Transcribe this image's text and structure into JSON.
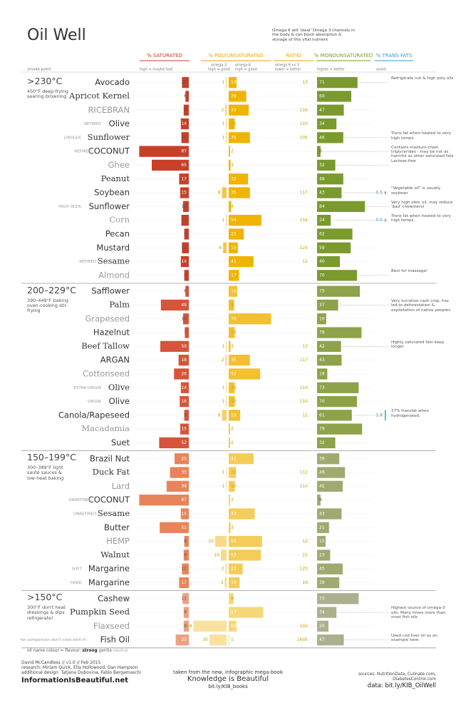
{
  "header": {
    "title": "Oil Well",
    "note": "Omega 6 will 'steal' Omega 3 channels in the body & can block absorption & storage of this vital nutrient",
    "smoke_point": "smoke point"
  },
  "columns": {
    "saturated": {
      "label": "% SATURATED",
      "sub": "high = maybe bad",
      "color": "#c8402a"
    },
    "poly": {
      "label": "% POLYUNSATURATED",
      "sub3": "omega-3",
      "sub3b": "high = good",
      "sub6": "omega-6",
      "sub6b": "high = good",
      "color": "#e8a800"
    },
    "ratio": {
      "label": "RATIO",
      "sub": "omega 6 vs 3",
      "subb": "lower = better",
      "color": "#e8a800"
    },
    "mono": {
      "label": "% MONOUNSATURATED",
      "sub": "higher = better",
      "color": "#7a9a2e"
    },
    "trans": {
      "label": "% TRANS FATS",
      "sub": "avoid",
      "color": "#3a9ad0"
    }
  },
  "groups": [
    {
      "temp": ">230°C",
      "desc": "450°F deep-frying searing browning",
      "colors": {
        "sat": "#c8402a",
        "o3": "#f3c64a",
        "o6": "#f0b400",
        "mono": "#7a9a2e"
      },
      "rows": [
        {
          "name": "Avocado",
          "saturated": 12,
          "omega3": 1,
          "omega6": 13,
          "ratio": "13",
          "mono": 71,
          "note": "Refrigerate nut & high poly oils"
        },
        {
          "name": "Apricot Kernel",
          "saturated": 6,
          "omega6": 29,
          "mono": 60
        },
        {
          "name": "RICEBRAN",
          "saturated": 9,
          "omega3": 2,
          "omega6": 33,
          "ratio": "116",
          "mono": 47
        },
        {
          "prefix": "REFINED",
          "name": "Olive",
          "saturated": 14,
          "omega3": 1,
          "omega6": 10,
          "ratio": "110",
          "mono": 34
        },
        {
          "prefix": "LINOLEIC",
          "name": "Sunflower",
          "saturated": 13,
          "omega3": 1,
          "omega6": 35,
          "ratio": "105",
          "mono": 46,
          "note": "Trans fat when heated to very high temps"
        },
        {
          "prefix": "REFINED",
          "name": "COCONUT",
          "saturated": 87,
          "omega6": 2,
          "mono": 6,
          "note": "Contains medium-chain triglycerides - may be not as harmful as other saturated fats"
        },
        {
          "name": "Ghee",
          "saturated": 65,
          "omega6": 3,
          "mono": 32,
          "note": "Lactose-free"
        },
        {
          "name": "Peanut",
          "saturated": 17,
          "omega6": 32,
          "mono": 46
        },
        {
          "name": "Soybean",
          "saturated": 15,
          "omega3": 8,
          "omega6": 35,
          "ratio": "117",
          "mono": 43,
          "trans": 0.5,
          "note": "\"Vegetable oil\" is usually soybean"
        },
        {
          "prefix": "HIGH-OLEIC",
          "name": "Sunflower",
          "saturated": 10,
          "omega6": 4,
          "mono": 84,
          "note": "Very high oleic oil, may reduce 'bad' cholesterol"
        },
        {
          "name": "Corn",
          "saturated": 13,
          "omega3": 1,
          "omega6": 54,
          "ratio": "154",
          "mono": 24,
          "trans": 0.5,
          "note": "Trans fat when heated to very high temps"
        },
        {
          "name": "Pecan",
          "saturated": 8,
          "omega6": 25,
          "mono": 62
        },
        {
          "name": "Mustard",
          "saturated": 12,
          "omega3": 6,
          "omega6": 15,
          "ratio": "125",
          "mono": 59
        },
        {
          "prefix": "REFINED",
          "name": "Sesame",
          "saturated": 14,
          "omega6": 41,
          "ratio": "12",
          "mono": 40
        },
        {
          "name": "Almond",
          "saturated": 8,
          "omega6": 17,
          "mono": 70,
          "note": "Best for massage!"
        }
      ]
    },
    {
      "temp": "200–229°C",
      "desc": "390–449°F baking oven-cooking stir-frying",
      "colors": {
        "sat": "#d6543a",
        "o3": "#f5cf6a",
        "o6": "#f2c030",
        "mono": "#8ea24a"
      },
      "rows": [
        {
          "name": "Safflower",
          "saturated": 6,
          "omega6": 14,
          "mono": 75
        },
        {
          "name": "Palm",
          "saturated": 49,
          "omega6": 9,
          "mono": 37,
          "note": "Very lucrative cash crop, has led to deforestation & exploitation of native peoples"
        },
        {
          "name": "Grapeseed",
          "saturated": 10,
          "omega6": 70,
          "mono": 16
        },
        {
          "name": "Hazelnut",
          "saturated": 7,
          "omega6": 10,
          "mono": 78
        },
        {
          "name": "Beef Tallow",
          "saturated": 50,
          "omega3": 1,
          "omega6": 3,
          "ratio": "13",
          "mono": 42,
          "note": "Highly saturated fats keep longer"
        },
        {
          "name": "ARGAN",
          "saturated": 18,
          "omega3": 2,
          "omega6": 35,
          "ratio": "117",
          "mono": 43
        },
        {
          "name": "Cottonseed",
          "saturated": 26,
          "omega6": 52,
          "mono": 18
        },
        {
          "prefix": "EXTRA-VIRGIN",
          "name": "Olive",
          "saturated": 14,
          "omega3": 1,
          "omega6": 10,
          "ratio": "110",
          "mono": 73
        },
        {
          "prefix": "VIRGIN",
          "name": "Olive",
          "saturated": 16,
          "omega3": 1,
          "omega6": 10,
          "ratio": "110",
          "mono": 70
        },
        {
          "name": "Canola/Rapeseed",
          "saturated": 8,
          "omega3": 8,
          "omega6": 19,
          "ratio": "12",
          "mono": 61,
          "trans": 1.8,
          "note": "27% transfat when hydrogenated"
        },
        {
          "name": "Macadamia",
          "saturated": 15,
          "omega6": 2,
          "mono": 79
        },
        {
          "name": "Suet",
          "saturated": 52,
          "omega6": 2,
          "mono": 32
        }
      ]
    },
    {
      "temp": "150–199°C",
      "desc": "300–389°F light sauté sauces & low-heat baking",
      "colors": {
        "sat": "#e8845a",
        "o3": "#f7da8a",
        "o6": "#f4cc58",
        "mono": "#a0aa70"
      },
      "rows": [
        {
          "name": "Brazil Nut",
          "saturated": 25,
          "omega6": 41,
          "mono": 39
        },
        {
          "name": "Duck Fat",
          "saturated": 33,
          "omega3": 1,
          "omega6": 12,
          "ratio": "112",
          "mono": 49
        },
        {
          "name": "Lard",
          "saturated": 39,
          "omega3": 1,
          "omega6": 10,
          "ratio": "110",
          "mono": 45
        },
        {
          "prefix": "UNREFINED",
          "name": "COCONUT",
          "saturated": 87,
          "omega6": 2,
          "mono": 6
        },
        {
          "prefix": "UNREFINED",
          "name": "Sesame",
          "saturated": 14,
          "omega6": 43,
          "mono": 43
        },
        {
          "name": "Butter",
          "saturated": 51,
          "omega6": 3,
          "mono": 21
        },
        {
          "name": "HEMP",
          "saturated": 8,
          "omega3": 20,
          "omega6": 55,
          "ratio": "12",
          "mono": 15
        },
        {
          "name": "Walnut",
          "saturated": 9,
          "omega3": 10,
          "omega6": 53,
          "ratio": "15",
          "mono": 23
        },
        {
          "prefix": "SOFT",
          "name": "Margarine",
          "saturated": 12,
          "omega3": 2,
          "omega6": 23,
          "ratio": "125",
          "mono": 45
        },
        {
          "prefix": "HARD",
          "name": "Margarine",
          "saturated": 17,
          "omega3": 3,
          "omega6": 18,
          "ratio": "19",
          "mono": 39
        }
      ]
    },
    {
      "temp": ">150°C",
      "desc": "300°F don't heat dressings & dips refrigerate!",
      "colors": {
        "sat": "#eea080",
        "o3": "#f9e2a0",
        "o6": "#f6d878",
        "mono": "#acb08e"
      },
      "rows": [
        {
          "name": "Cashew",
          "saturated": 11,
          "omega6": 8,
          "mono": 73
        },
        {
          "name": "Pumpkin Seed",
          "saturated": 9,
          "omega6": 57,
          "mono": 34,
          "note": "Highest source of omega-3 oils. Many times more than most fish oils"
        },
        {
          "name": "Flaxseed",
          "saturated": 9,
          "omega3": 58,
          "omega6": 13,
          "ratio": "102",
          "mono": 20
        },
        {
          "prefix": "for comparison don't cook with it!",
          "name": "Fish Oil",
          "saturated": 23,
          "omega3": 30,
          "omega6": 1,
          "ratio": "1605",
          "mono": 47,
          "note": "Used cod liver oil as an example here"
        }
      ]
    }
  ],
  "legend": {
    "label": "oil name colour = flavour:",
    "strong": "strong",
    "gentle": "gentle",
    "neutral": "neutral"
  },
  "footer": {
    "credit": "David McCandless // v1.0 // Feb 2015",
    "research": "research: Miriam Quick, Ella Hollowood, Dan Hampson",
    "design": "additional design: Tatjana Dubovina, Fabio Bergamaschi",
    "site": "InformationIsBeautiful.net",
    "book_intro": "taken from the new, infographic mega-book",
    "book": "Knowledge is Beautiful",
    "book_link": "bit.ly/KIB_books",
    "sources": "sources: NutritionData, Culinate.com,",
    "sources2": "DiabetesControl.com",
    "data_link": "data: bit.ly/KIB_OilWell"
  }
}
